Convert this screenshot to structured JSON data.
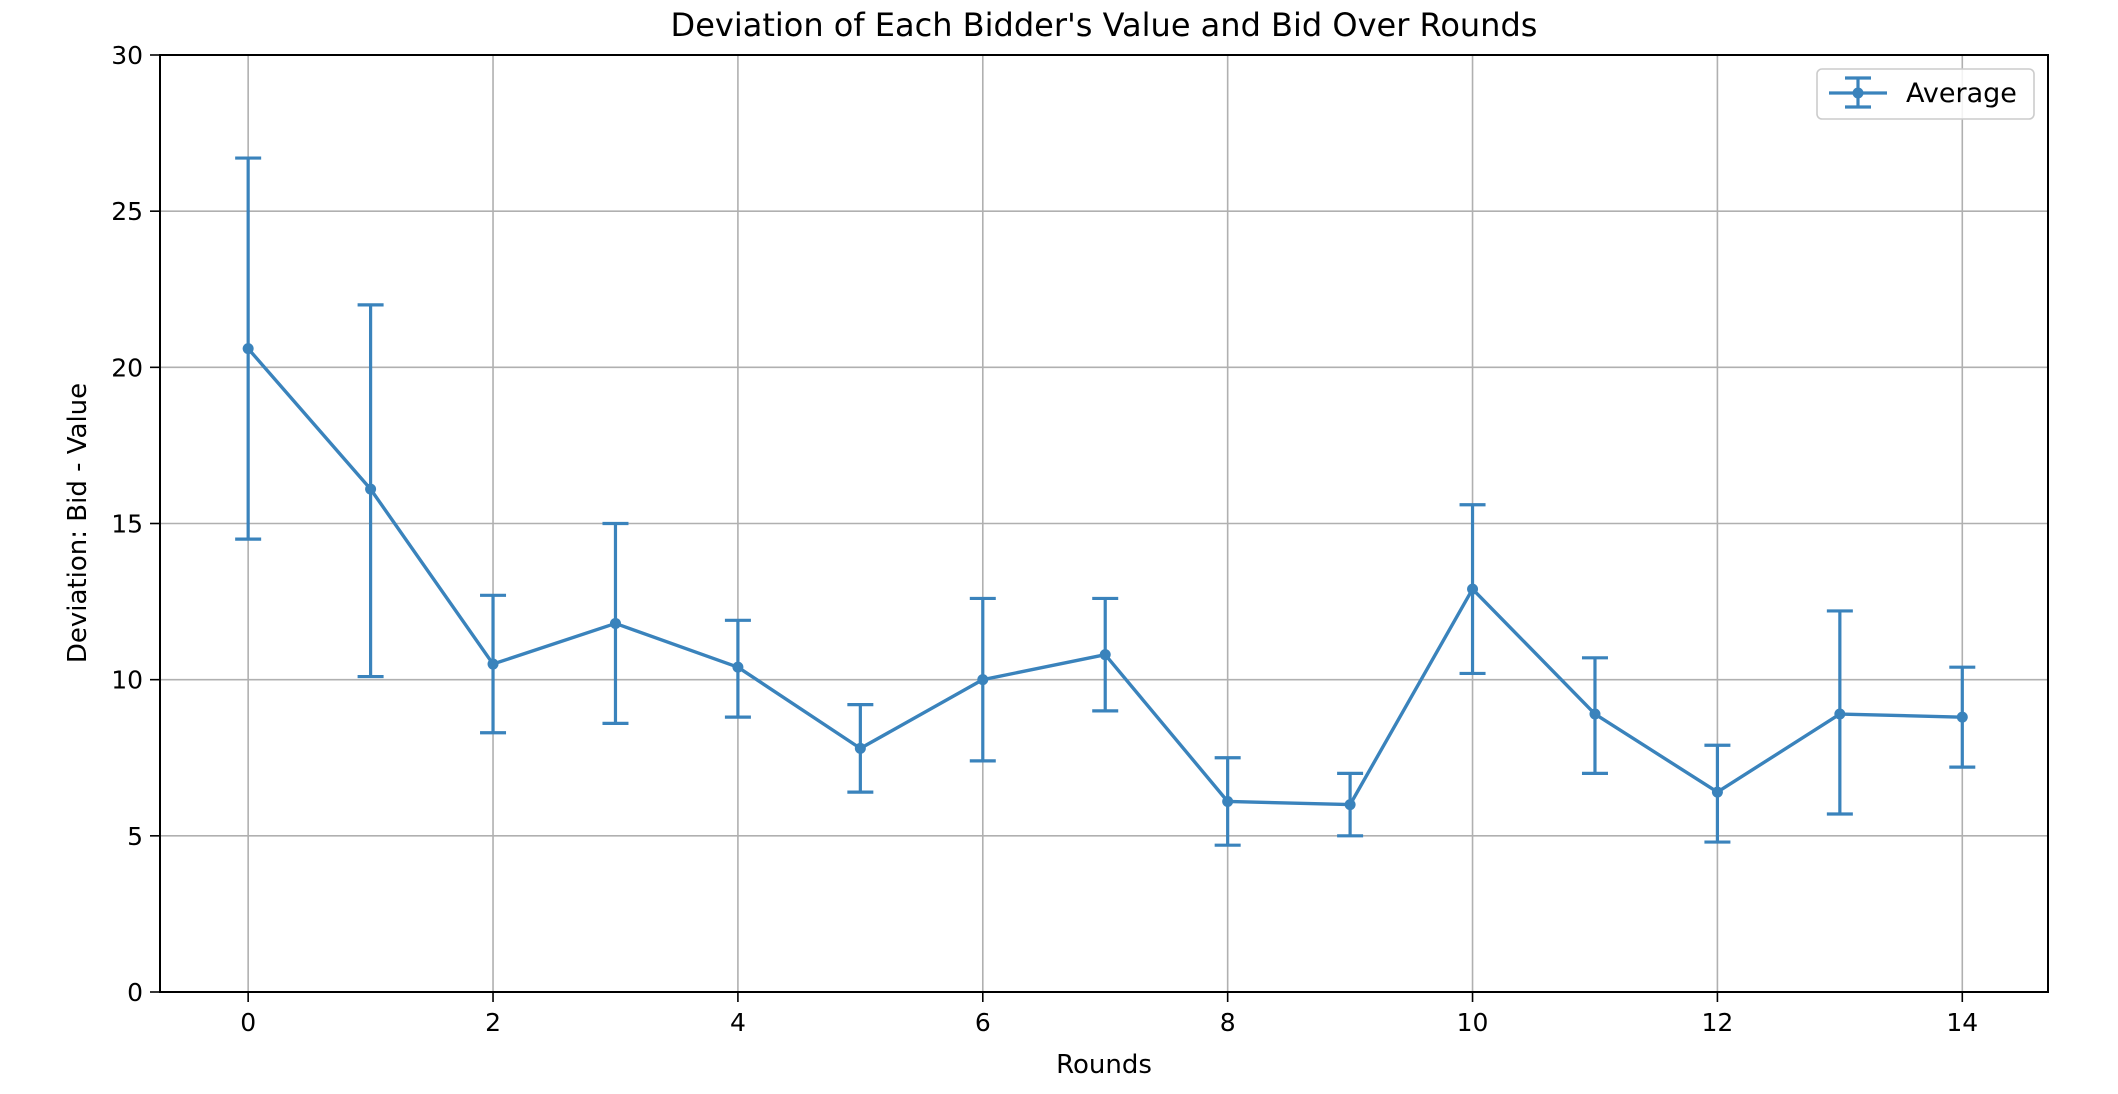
{
  "chart_data": {
    "type": "line",
    "title": "Deviation of Each Bidder's Value and Bid Over Rounds",
    "xlabel": "Rounds",
    "ylabel": "Deviation: Bid - Value",
    "xlim": [
      -0.72,
      14.7
    ],
    "ylim": [
      0,
      30
    ],
    "xticks": [
      0,
      2,
      4,
      6,
      8,
      10,
      12,
      14
    ],
    "yticks": [
      0,
      5,
      10,
      15,
      20,
      25,
      30
    ],
    "grid": true,
    "legend_position": "top-right",
    "series": [
      {
        "name": "Average",
        "color": "#3a83bc",
        "marker": "circle",
        "error_bars": true,
        "x": [
          0,
          1,
          2,
          3,
          4,
          5,
          6,
          7,
          8,
          9,
          10,
          11,
          12,
          13,
          14
        ],
        "y": [
          20.6,
          16.1,
          10.5,
          11.8,
          10.4,
          7.8,
          10.0,
          10.8,
          6.1,
          6.0,
          12.9,
          8.9,
          6.4,
          8.9,
          8.8
        ],
        "err_low": [
          14.5,
          10.1,
          8.3,
          8.6,
          8.8,
          6.4,
          7.4,
          9.0,
          4.7,
          5.0,
          10.2,
          7.0,
          4.8,
          5.7,
          7.2
        ],
        "err_high": [
          26.7,
          22.0,
          12.7,
          15.0,
          11.9,
          9.2,
          12.6,
          12.6,
          7.5,
          7.0,
          15.6,
          10.7,
          7.9,
          12.2,
          10.4
        ]
      }
    ]
  }
}
